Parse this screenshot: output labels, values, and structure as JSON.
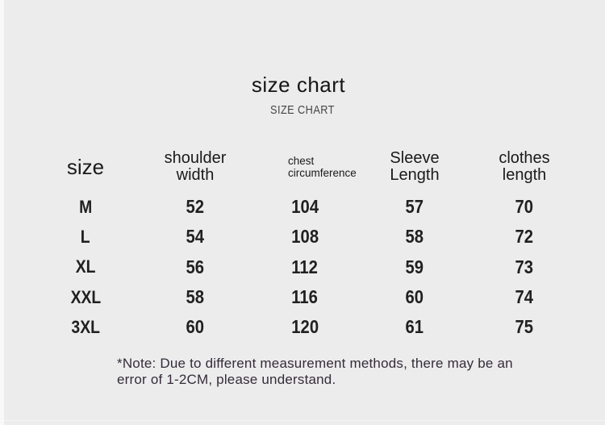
{
  "page": {
    "background": "#ececec",
    "note": {
      "line1": "*Note: Due to different measurement methods, there may be an",
      "line2": "error of 1-2CM, please understand."
    }
  },
  "chart_data": {
    "type": "table",
    "title": "size chart",
    "subtitle": "SIZE CHART",
    "columns": [
      "size",
      "shoulder width",
      "chest circumference",
      "Sleeve Length",
      "clothes length"
    ],
    "rows": [
      [
        "M",
        "52",
        "104",
        "57",
        "70"
      ],
      [
        "L",
        "54",
        "108",
        "58",
        "72"
      ],
      [
        "XL",
        "56",
        "112",
        "59",
        "73"
      ],
      [
        "XXL",
        "58",
        "116",
        "60",
        "74"
      ],
      [
        "3XL",
        "60",
        "120",
        "61",
        "75"
      ]
    ],
    "note": "*Note: Due to different measurement methods, there may be an error of 1-2CM, please understand.",
    "colors": {
      "background": "#ececec",
      "title_text": "#151515",
      "subtitle_text": "#454545",
      "table_text": "#1c1c1e",
      "note_text": "#352c3a"
    }
  }
}
